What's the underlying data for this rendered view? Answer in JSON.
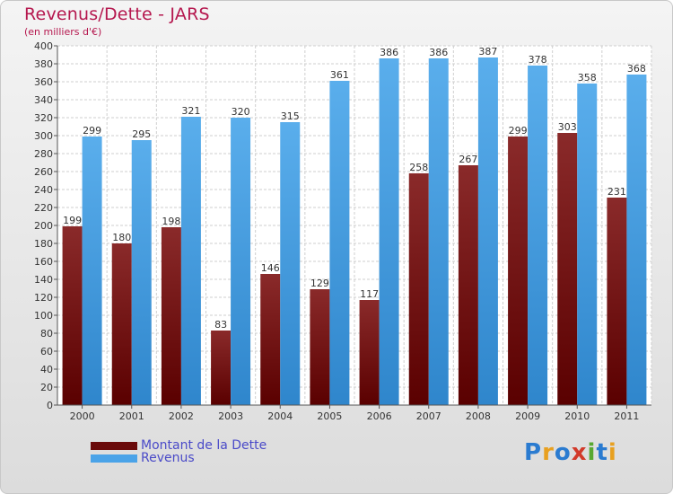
{
  "title": "Revenus/Dette - JARS",
  "subtitle": "(en milliers d'€)",
  "logo_text": "Proxiti",
  "colors": {
    "dette": "#7a1818",
    "revenus": "#4aa3e8",
    "title": "#b5174e",
    "legend_text": "#4a4ac8"
  },
  "chart_data": {
    "type": "bar",
    "title": "Revenus/Dette - JARS",
    "ylabel": "(en milliers d'€)",
    "xlabel": "",
    "categories": [
      "2000",
      "2001",
      "2002",
      "2003",
      "2004",
      "2005",
      "2006",
      "2007",
      "2008",
      "2009",
      "2010",
      "2011"
    ],
    "series": [
      {
        "name": "Montant de la Dette",
        "values": [
          199,
          180,
          198,
          83,
          146,
          129,
          117,
          258,
          267,
          299,
          303,
          231
        ]
      },
      {
        "name": "Revenus",
        "values": [
          299,
          295,
          321,
          320,
          315,
          361,
          386,
          386,
          387,
          378,
          358,
          368
        ]
      }
    ],
    "ylim": [
      0,
      400
    ],
    "ytick_step": 20,
    "grid": true,
    "legend_position": "bottom-left"
  }
}
